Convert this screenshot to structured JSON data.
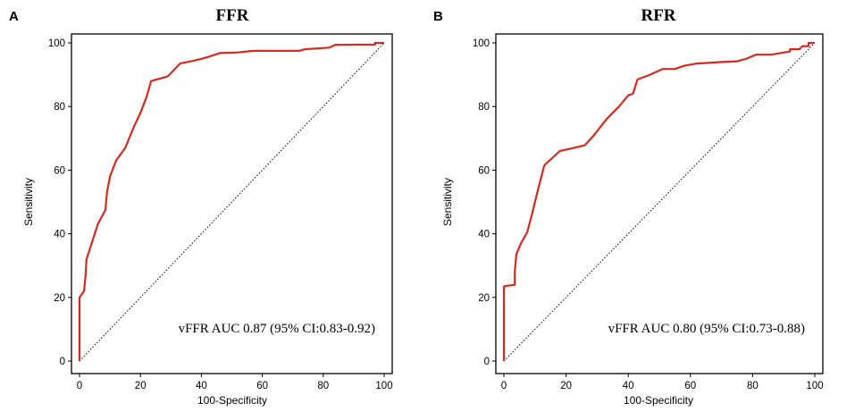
{
  "chart_data": [
    {
      "type": "line",
      "panel_label": "A",
      "title": "FFR",
      "xlabel": "100-Specificity",
      "ylabel": "Sensitivity",
      "xlim": [
        0,
        100
      ],
      "ylim": [
        0,
        100
      ],
      "xticks": [
        0,
        20,
        40,
        60,
        80,
        100
      ],
      "yticks": [
        0,
        20,
        40,
        60,
        80,
        100
      ],
      "annotation": "vFFR AUC 0.87 (95% CI:0.83-0.92)",
      "reference_line": "diagonal",
      "series": [
        {
          "name": "ROC",
          "color": "#d42a20",
          "points": [
            [
              0,
              0
            ],
            [
              0,
              20
            ],
            [
              1.5,
              22
            ],
            [
              2,
              27
            ],
            [
              2.3,
              32
            ],
            [
              4,
              37
            ],
            [
              6,
              43
            ],
            [
              8.5,
              47.5
            ],
            [
              9,
              53
            ],
            [
              10,
              58
            ],
            [
              12,
              63
            ],
            [
              15,
              67
            ],
            [
              18,
              74
            ],
            [
              20,
              78
            ],
            [
              22,
              83
            ],
            [
              23.5,
              88
            ],
            [
              29,
              89.5
            ],
            [
              33,
              93.5
            ],
            [
              38,
              94.5
            ],
            [
              42,
              95.5
            ],
            [
              46,
              96.8
            ],
            [
              52,
              97
            ],
            [
              57,
              97.5
            ],
            [
              72,
              97.5
            ],
            [
              74,
              98
            ],
            [
              82,
              98.5
            ],
            [
              84,
              99.4
            ],
            [
              97,
              99.5
            ],
            [
              97,
              100
            ],
            [
              100,
              100
            ]
          ]
        }
      ]
    },
    {
      "type": "line",
      "panel_label": "B",
      "title": "RFR",
      "xlabel": "100-Specificity",
      "ylabel": "Sensitivity",
      "xlim": [
        0,
        100
      ],
      "ylim": [
        0,
        100
      ],
      "xticks": [
        0,
        20,
        40,
        60,
        80,
        100
      ],
      "yticks": [
        0,
        20,
        40,
        60,
        80,
        100
      ],
      "annotation": "vFFR AUC 0.80 (95% CI:0.73-0.88)",
      "reference_line": "diagonal",
      "series": [
        {
          "name": "ROC",
          "color": "#d42a20",
          "points": [
            [
              0,
              0
            ],
            [
              0,
              23.5
            ],
            [
              3.5,
              24
            ],
            [
              3.5,
              28
            ],
            [
              4,
              33.5
            ],
            [
              5.5,
              37
            ],
            [
              7.5,
              40.5
            ],
            [
              9,
              46
            ],
            [
              11,
              54
            ],
            [
              13,
              61.5
            ],
            [
              18,
              66
            ],
            [
              26,
              67.8
            ],
            [
              29,
              71
            ],
            [
              33,
              76
            ],
            [
              37,
              80
            ],
            [
              40,
              83.5
            ],
            [
              41.5,
              84
            ],
            [
              43,
              88.5
            ],
            [
              47,
              90
            ],
            [
              51,
              91.8
            ],
            [
              55,
              91.8
            ],
            [
              58,
              92.8
            ],
            [
              62,
              93.5
            ],
            [
              70,
              94
            ],
            [
              75,
              94.2
            ],
            [
              78,
              95
            ],
            [
              81,
              96.3
            ],
            [
              86,
              96.3
            ],
            [
              92,
              97.3
            ],
            [
              92,
              98
            ],
            [
              95,
              98
            ],
            [
              96,
              99
            ],
            [
              98,
              99
            ],
            [
              98,
              100
            ],
            [
              100,
              100
            ]
          ]
        }
      ]
    }
  ]
}
